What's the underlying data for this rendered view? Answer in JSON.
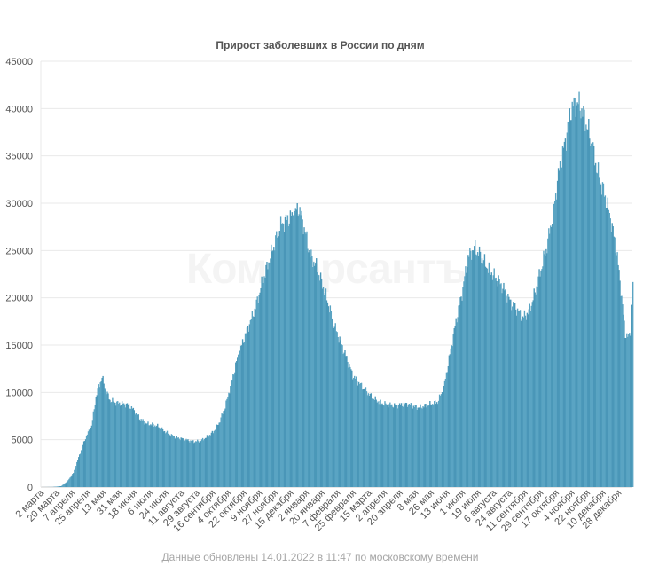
{
  "chart_data": {
    "type": "area",
    "title": "Прирост заболевших в России по дням",
    "ylim": [
      0,
      45000
    ],
    "y_ticks": [
      0,
      5000,
      10000,
      15000,
      20000,
      25000,
      30000,
      35000,
      40000,
      45000
    ],
    "x_tick_labels": [
      "2 марта",
      "20 марта",
      "7 апреля",
      "25 апреля",
      "13 мая",
      "31 мая",
      "18 июня",
      "6 июля",
      "24 июля",
      "11 августа",
      "29 августа",
      "16 сентября",
      "4 октября",
      "22 октября",
      "9 ноября",
      "27 ноября",
      "15 декабря",
      "2 января",
      "20 января",
      "7 февраля",
      "25 февраля",
      "15 марта",
      "2 апреля",
      "20 апреля",
      "8 мая",
      "26 мая",
      "13 июня",
      "1 июля",
      "19 июля",
      "6 августа",
      "24 августа",
      "11 сентября",
      "29 сентября",
      "17 октября",
      "4 ноября",
      "22 ноября",
      "10 декабря",
      "28 декабря"
    ],
    "x_start": "2020-03-02",
    "x_end": "2022-01-13",
    "grid": true,
    "legend": "none",
    "color": "#4a97b8",
    "series": [
      {
        "values": [
          [
            "2020-03-02",
            0
          ],
          [
            "2020-03-15",
            10
          ],
          [
            "2020-03-25",
            100
          ],
          [
            "2020-04-01",
            600
          ],
          [
            "2020-04-08",
            1500
          ],
          [
            "2020-04-15",
            3400
          ],
          [
            "2020-04-22",
            5200
          ],
          [
            "2020-04-29",
            6500
          ],
          [
            "2020-05-04",
            9500
          ],
          [
            "2020-05-07",
            10600
          ],
          [
            "2020-05-11",
            11600
          ],
          [
            "2020-05-15",
            10300
          ],
          [
            "2020-05-20",
            9200
          ],
          [
            "2020-05-27",
            8900
          ],
          [
            "2020-06-03",
            8800
          ],
          [
            "2020-06-10",
            8700
          ],
          [
            "2020-06-17",
            8100
          ],
          [
            "2020-06-24",
            7200
          ],
          [
            "2020-07-01",
            6700
          ],
          [
            "2020-07-08",
            6600
          ],
          [
            "2020-07-15",
            6400
          ],
          [
            "2020-07-22",
            5900
          ],
          [
            "2020-07-29",
            5500
          ],
          [
            "2020-08-05",
            5200
          ],
          [
            "2020-08-12",
            5100
          ],
          [
            "2020-08-19",
            4900
          ],
          [
            "2020-08-26",
            4800
          ],
          [
            "2020-09-02",
            4900
          ],
          [
            "2020-09-09",
            5300
          ],
          [
            "2020-09-16",
            5800
          ],
          [
            "2020-09-23",
            6800
          ],
          [
            "2020-09-30",
            8500
          ],
          [
            "2020-10-07",
            11000
          ],
          [
            "2020-10-14",
            13600
          ],
          [
            "2020-10-21",
            15500
          ],
          [
            "2020-10-28",
            17300
          ],
          [
            "2020-11-04",
            19000
          ],
          [
            "2020-11-11",
            21400
          ],
          [
            "2020-11-18",
            23500
          ],
          [
            "2020-11-25",
            25500
          ],
          [
            "2020-12-02",
            27500
          ],
          [
            "2020-12-09",
            28200
          ],
          [
            "2020-12-16",
            28600
          ],
          [
            "2020-12-24",
            29500
          ],
          [
            "2020-12-30",
            27400
          ],
          [
            "2021-01-06",
            24500
          ],
          [
            "2021-01-13",
            23300
          ],
          [
            "2021-01-20",
            21400
          ],
          [
            "2021-01-27",
            19300
          ],
          [
            "2021-02-03",
            17000
          ],
          [
            "2021-02-10",
            15300
          ],
          [
            "2021-02-17",
            13600
          ],
          [
            "2021-02-24",
            11800
          ],
          [
            "2021-03-03",
            11000
          ],
          [
            "2021-03-10",
            10300
          ],
          [
            "2021-03-17",
            9600
          ],
          [
            "2021-03-24",
            9100
          ],
          [
            "2021-03-31",
            8800
          ],
          [
            "2021-04-07",
            8700
          ],
          [
            "2021-04-14",
            8600
          ],
          [
            "2021-04-21",
            8700
          ],
          [
            "2021-04-28",
            8800
          ],
          [
            "2021-05-05",
            8500
          ],
          [
            "2021-05-12",
            8400
          ],
          [
            "2021-05-19",
            8600
          ],
          [
            "2021-05-26",
            8800
          ],
          [
            "2021-06-02",
            9000
          ],
          [
            "2021-06-09",
            10500
          ],
          [
            "2021-06-16",
            14000
          ],
          [
            "2021-06-23",
            17500
          ],
          [
            "2021-06-30",
            20500
          ],
          [
            "2021-07-07",
            24300
          ],
          [
            "2021-07-14",
            25300
          ],
          [
            "2021-07-21",
            24500
          ],
          [
            "2021-07-28",
            23400
          ],
          [
            "2021-08-04",
            22500
          ],
          [
            "2021-08-11",
            21800
          ],
          [
            "2021-08-18",
            20800
          ],
          [
            "2021-08-25",
            19500
          ],
          [
            "2021-09-01",
            18800
          ],
          [
            "2021-09-08",
            17900
          ],
          [
            "2021-09-15",
            18500
          ],
          [
            "2021-09-22",
            20500
          ],
          [
            "2021-09-29",
            23000
          ],
          [
            "2021-10-06",
            25500
          ],
          [
            "2021-10-13",
            29000
          ],
          [
            "2021-10-20",
            33500
          ],
          [
            "2021-10-27",
            36500
          ],
          [
            "2021-11-03",
            40000
          ],
          [
            "2021-11-08",
            40600
          ],
          [
            "2021-11-13",
            40300
          ],
          [
            "2021-11-20",
            38500
          ],
          [
            "2021-11-27",
            36000
          ],
          [
            "2021-12-04",
            33000
          ],
          [
            "2021-12-11",
            31000
          ],
          [
            "2021-12-18",
            28500
          ],
          [
            "2021-12-25",
            25000
          ],
          [
            "2021-12-30",
            21000
          ],
          [
            "2022-01-04",
            16200
          ],
          [
            "2022-01-08",
            15800
          ],
          [
            "2022-01-11",
            17000
          ],
          [
            "2022-01-13",
            21500
          ]
        ]
      }
    ]
  },
  "footer": "Данные обновлены 14.01.2022 в 11:47 по московскому времени",
  "watermark": "Коммерсантъ"
}
